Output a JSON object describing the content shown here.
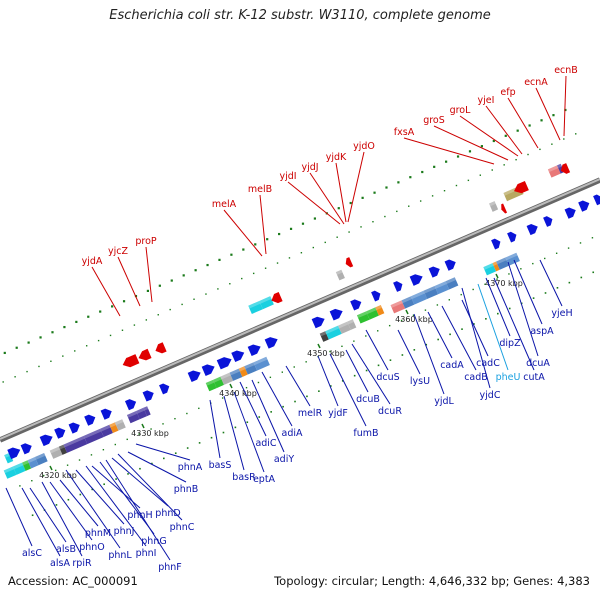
{
  "title": "Escherichia coli str. K-12 substr. W3110, complete genome",
  "footer": {
    "accession": "Accession: AC_000091",
    "topology": "Topology: circular; Length: 4,646,332 bp; Genes: 4,383"
  },
  "colors": {
    "forward_gene": "#0a14d8",
    "reverse_gene": "#e00000",
    "forward_label": "#0a14a8",
    "reverse_label": "#cc0000",
    "highlight_label": "#1aa0e0",
    "backbone": "#888888",
    "tick_green": "#1a7a1a"
  },
  "ticks": [
    "4320 kbp",
    "4330 kbp",
    "4340 kbp",
    "4350 kbp",
    "4360 kbp",
    "4370 kbp"
  ],
  "genes_reverse": [
    "yjdA",
    "yjcZ",
    "proP",
    "melA",
    "melB",
    "yjdI",
    "yjdJ",
    "yjdK",
    "yjdO",
    "fxsA",
    "groS",
    "groL",
    "yjeI",
    "efp",
    "ecnA",
    "ecnB"
  ],
  "genes_forward": [
    "alsC",
    "alsA",
    "alsB",
    "rpiR",
    "phnO",
    "phnM",
    "phnL",
    "phnJ",
    "phnI",
    "phnH",
    "phnG",
    "phnF",
    "phnD",
    "phnC",
    "phnB",
    "phnA",
    "basS",
    "basR",
    "eptA",
    "adiC",
    "adiY",
    "adiA",
    "melR",
    "yjdF",
    "fumB",
    "dcuB",
    "dcuR",
    "dcuS",
    "lysU",
    "yjdL",
    "cadA",
    "cadB",
    "cadC",
    "yjdC",
    "pheU",
    "dipZ",
    "cutA",
    "dcuA",
    "aspA",
    "yjeH"
  ]
}
